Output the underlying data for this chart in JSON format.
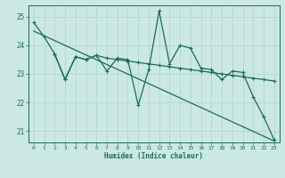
{
  "xlabel": "Humidex (Indice chaleur)",
  "background_color": "#cce8e4",
  "grid_color": "#aad4cc",
  "line_color": "#1a6b5a",
  "xlim": [
    -0.5,
    23.5
  ],
  "ylim": [
    20.6,
    25.4
  ],
  "yticks": [
    21,
    22,
    23,
    24,
    25
  ],
  "xticks": [
    0,
    1,
    2,
    3,
    4,
    5,
    6,
    7,
    8,
    9,
    10,
    11,
    12,
    13,
    14,
    15,
    16,
    17,
    18,
    19,
    20,
    21,
    22,
    23
  ],
  "series1_x": [
    0,
    1,
    2,
    3,
    4,
    5,
    6,
    7,
    8,
    9,
    10,
    11,
    12,
    13,
    14,
    15,
    16,
    17,
    18,
    19,
    20,
    21,
    22,
    23
  ],
  "series1_y": [
    24.8,
    24.3,
    23.7,
    22.8,
    23.6,
    23.5,
    23.65,
    23.1,
    23.55,
    23.5,
    21.9,
    23.15,
    25.2,
    23.35,
    24.0,
    23.9,
    23.2,
    23.15,
    22.8,
    23.1,
    23.05,
    22.2,
    21.5,
    20.7
  ],
  "series2_x": [
    2,
    3,
    4,
    5,
    6,
    7,
    8,
    9,
    10,
    11,
    12,
    13,
    14,
    15,
    16,
    17,
    18,
    19,
    20,
    21,
    22,
    23
  ],
  "series2_y": [
    23.7,
    22.8,
    23.6,
    23.5,
    23.65,
    23.55,
    23.5,
    23.45,
    23.4,
    23.35,
    23.3,
    23.25,
    23.2,
    23.15,
    23.1,
    23.05,
    23.0,
    22.95,
    22.9,
    22.85,
    22.8,
    22.75
  ],
  "trend_x": [
    0,
    23
  ],
  "trend_y": [
    24.5,
    20.65
  ]
}
